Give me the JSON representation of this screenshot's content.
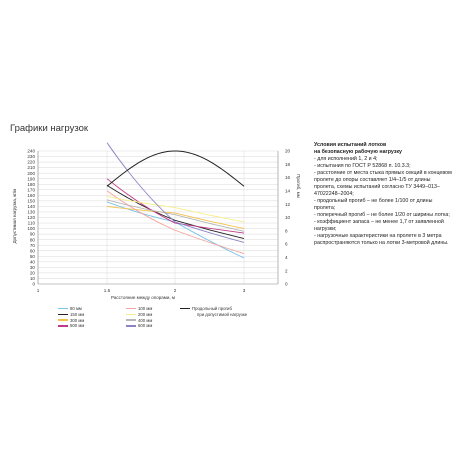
{
  "page": {
    "title": "Графики нагрузок"
  },
  "chart_data": {
    "type": "line",
    "ylabel": "Допустимая нагрузка, кг/м",
    "ylabel_right": "Прогиб, мм",
    "xlabel": "Расстояние между опорами, м",
    "x_ticks": [
      "1",
      "1.5",
      "2",
      "3"
    ],
    "x_tick_values": [
      1,
      1.5,
      2,
      3
    ],
    "ylim": [
      0,
      240
    ],
    "y_ticks": [
      0,
      10,
      20,
      30,
      40,
      50,
      60,
      70,
      80,
      90,
      100,
      110,
      120,
      130,
      140,
      150,
      160,
      170,
      180,
      190,
      200,
      210,
      220,
      230,
      240
    ],
    "y2lim": [
      0,
      20
    ],
    "y2_ticks": [
      0,
      2,
      4,
      6,
      8,
      10,
      12,
      14,
      16,
      18,
      20
    ],
    "grid": true,
    "series": [
      {
        "name": "80 мм",
        "color": "#7cc4e8",
        "x": [
          1.5,
          2,
          3
        ],
        "y": [
          148,
          112,
          47
        ]
      },
      {
        "name": "150 мм",
        "color": "#222222",
        "x": [
          1.5,
          2,
          3
        ],
        "y": [
          178,
          115,
          82
        ]
      },
      {
        "name": "300 мм",
        "color": "#f2c24b",
        "x": [
          1.5,
          2,
          3
        ],
        "y": [
          140,
          128,
          100
        ]
      },
      {
        "name": "500 мм",
        "color": "#c13a86",
        "x": [
          1.5,
          2,
          3
        ],
        "y": [
          190,
          110,
          92
        ]
      },
      {
        "name": "100 мм",
        "color": "#f4a49c",
        "x": [
          1.5,
          2,
          3
        ],
        "y": [
          168,
          97,
          55
        ]
      },
      {
        "name": "200 мм",
        "color": "#f6ee8c",
        "x": [
          1.5,
          2,
          3
        ],
        "y": [
          158,
          138,
          112
        ]
      },
      {
        "name": "400 мм",
        "color": "#b6b6b6",
        "x": [
          1.5,
          2,
          3
        ],
        "y": [
          152,
          125,
          95
        ]
      },
      {
        "name": "600 мм",
        "color": "#8a84c4",
        "x": [
          1.5,
          2,
          3
        ],
        "y": [
          255,
          112,
          75
        ]
      }
    ],
    "deflection": {
      "name": "Продольный прогиб при допустимой нагрузке",
      "name_lines": [
        "Продольный прогиб",
        "при допустимой нагрузке"
      ],
      "color": "#222222",
      "x": [
        1.5,
        2,
        3
      ],
      "y": [
        14.7,
        20.0,
        14.7
      ]
    }
  },
  "notes": {
    "heading": [
      "Условия испытаний лотков",
      "на безопасную рабочую нагрузку"
    ],
    "lines": [
      "- для исполнений 1, 2 и 4;",
      "- испытания по ГОСТ Р 52868 п. 10.3.3;",
      "- расстояние от места стыка прямых секций в концевом пролете до опоры составляет 1/4–1/5 от длины пролета, схемы испытаний согласно ТУ 3449–013–47022248–2004;",
      "- продольный прогиб – не более 1/100 от длины пролета;",
      "- поперечный прогиб – не более 1/20 от ширины лотка;",
      "- коэффициент запаса – не менее 1,7 от заявленной нагрузки;",
      "- нагрузочные характеристики на пролете в 3 метра распространяются только на лотки 3-метровой длины."
    ]
  }
}
